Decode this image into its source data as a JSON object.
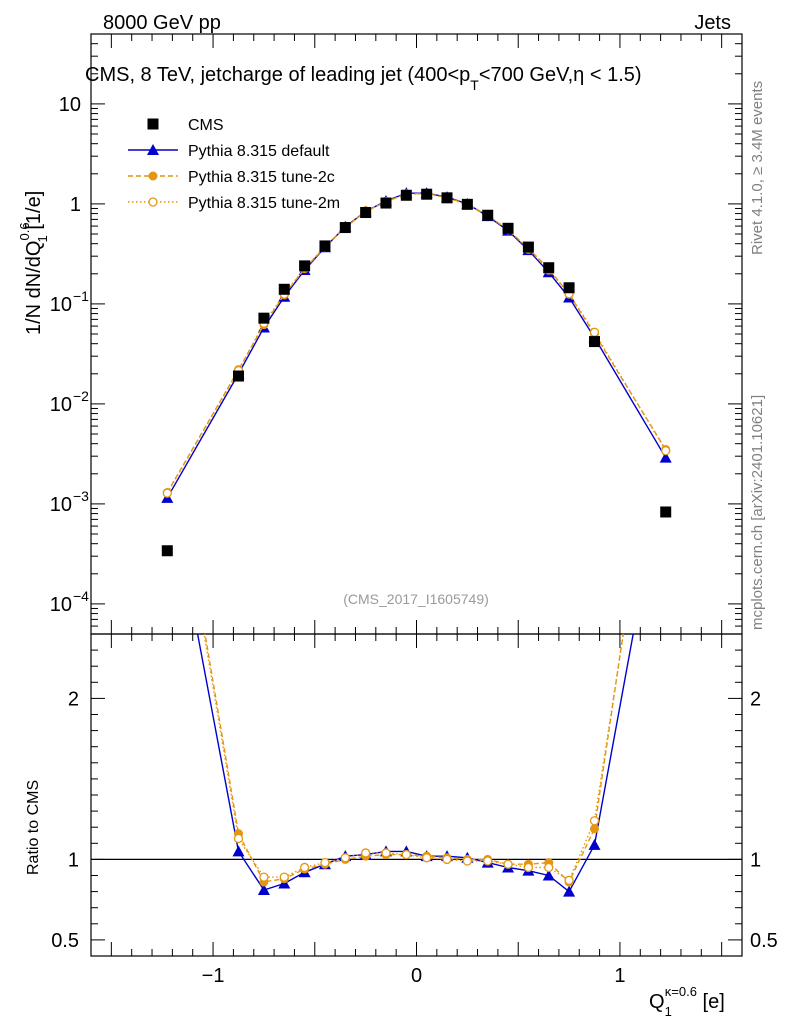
{
  "header": {
    "left": "8000 GeV pp",
    "right": "Jets",
    "title": "CMS, 8 TeV, jetcharge of leading jet (400<p_T<700 GeV,η < 1.5)",
    "title_pre": "CMS, 8 TeV, jetcharge of leading jet (400<p",
    "title_sub": "T",
    "title_post": "<700 GeV,η < 1.5)"
  },
  "side_labels": {
    "rivet": "Rivet 4.1.0, ≥ 3.4M events",
    "mcplots": "mcplots.cern.ch [arXiv:2401.10621]"
  },
  "analysis_id": "(CMS_2017_I1605749)",
  "axes": {
    "y_main_label": "1/N dN/dQ",
    "y_main_sup": "0.6",
    "y_main_sub": "1",
    "y_main_unit": " [1/e]",
    "y_ratio_label": "Ratio to CMS",
    "x_label": "Q",
    "x_sub": "1",
    "x_sup": "κ=0.6",
    "x_unit": " [e]"
  },
  "colors": {
    "data": "#000000",
    "default": "#0000cc",
    "tune": "#e5960f"
  },
  "chart_data": {
    "type": "scatter",
    "x": [
      -1.225,
      -0.875,
      -0.75,
      -0.65,
      -0.55,
      -0.45,
      -0.35,
      -0.25,
      -0.15,
      -0.05,
      0.05,
      0.15,
      0.25,
      0.35,
      0.45,
      0.55,
      0.65,
      0.75,
      0.875,
      1.225
    ],
    "xlim": [
      -1.6,
      1.6
    ],
    "ylim_main": [
      5e-05,
      50
    ],
    "ylim_ratio": [
      0.4,
      2.4
    ],
    "x_ticks": [
      {
        "v": -1,
        "label": "−1"
      },
      {
        "v": 0,
        "label": "0"
      },
      {
        "v": 1,
        "label": "1"
      }
    ],
    "y_main_ticks": [
      {
        "v": 10,
        "base": "10",
        "exp": ""
      },
      {
        "v": 1,
        "base": "1",
        "exp": ""
      },
      {
        "v": 0.1,
        "base": "10",
        "exp": "−1"
      },
      {
        "v": 0.01,
        "base": "10",
        "exp": "−2"
      },
      {
        "v": 0.001,
        "base": "10",
        "exp": "−3"
      },
      {
        "v": 0.0001,
        "base": "10",
        "exp": "−4"
      }
    ],
    "y_ratio_ticks": [
      {
        "v": 2,
        "label": "2"
      },
      {
        "v": 1,
        "label": "1"
      },
      {
        "v": 0.5,
        "label": "0.5"
      }
    ],
    "series": [
      {
        "name": "CMS",
        "key": "cms",
        "values": [
          0.00034,
          0.019,
          0.072,
          0.14,
          0.24,
          0.38,
          0.58,
          0.82,
          1.02,
          1.22,
          1.25,
          1.15,
          0.99,
          0.77,
          0.57,
          0.37,
          0.23,
          0.145,
          0.042,
          0.00083
        ]
      },
      {
        "name": "Pythia 8.315 default",
        "key": "default",
        "values": [
          0.00115,
          0.02,
          0.058,
          0.118,
          0.218,
          0.368,
          0.59,
          0.84,
          1.07,
          1.28,
          1.28,
          1.17,
          1.0,
          0.755,
          0.54,
          0.345,
          0.207,
          0.116,
          0.046,
          0.0029
        ]
      },
      {
        "name": "Pythia 8.315 tune-2c",
        "key": "tune2c",
        "values": [
          0.0013,
          0.022,
          0.062,
          0.123,
          0.225,
          0.37,
          0.58,
          0.84,
          1.05,
          1.26,
          1.27,
          1.16,
          0.99,
          0.77,
          0.55,
          0.36,
          0.225,
          0.125,
          0.05,
          0.0035
        ]
      },
      {
        "name": "Pythia 8.315 tune-2m",
        "key": "tune2m",
        "values": [
          0.00128,
          0.0215,
          0.064,
          0.125,
          0.228,
          0.372,
          0.585,
          0.85,
          1.06,
          1.26,
          1.26,
          1.15,
          0.98,
          0.765,
          0.555,
          0.352,
          0.218,
          0.126,
          0.052,
          0.0034
        ]
      }
    ],
    "ratios": [
      {
        "key": "default",
        "values": [
          3.4,
          1.05,
          0.81,
          0.85,
          0.92,
          0.97,
          1.02,
          1.03,
          1.05,
          1.05,
          1.02,
          1.02,
          1.01,
          0.98,
          0.95,
          0.93,
          0.9,
          0.8,
          1.09,
          3.5
        ]
      },
      {
        "key": "tune2c",
        "values": [
          3.8,
          1.16,
          0.86,
          0.88,
          0.94,
          0.97,
          1.0,
          1.02,
          1.03,
          1.03,
          1.02,
          1.01,
          1.0,
          1.0,
          0.97,
          0.97,
          0.98,
          0.86,
          1.19,
          4.2
        ]
      },
      {
        "key": "tune2m",
        "values": [
          3.76,
          1.13,
          0.89,
          0.89,
          0.95,
          0.98,
          1.01,
          1.04,
          1.04,
          1.03,
          1.01,
          1.0,
          0.99,
          0.99,
          0.97,
          0.95,
          0.95,
          0.87,
          1.24,
          4.1
        ]
      }
    ]
  }
}
